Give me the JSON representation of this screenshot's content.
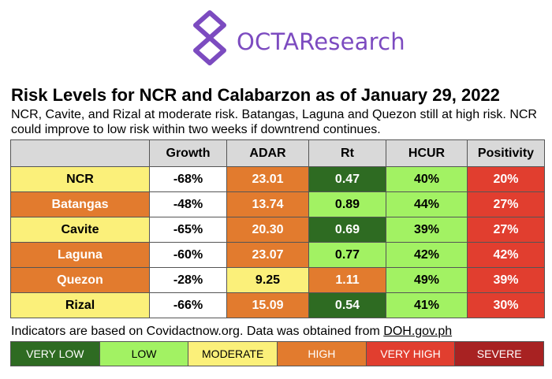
{
  "brand": {
    "name": "OCTAResearch",
    "color": "#7c4bc0"
  },
  "title": "Risk Levels for NCR and Calabarzon as of January 29, 2022",
  "subtitle": "NCR, Cavite, and Rizal at moderate risk. Batangas, Laguna and Quezon still at high risk. NCR could improve to low risk within two weeks if downtrend continues.",
  "table": {
    "headers": [
      "",
      "Growth",
      "ADAR",
      "Rt",
      "HCUR",
      "Positivity"
    ],
    "rows": [
      {
        "region": "NCR",
        "growth": "-68%",
        "adar": "23.01",
        "rt": "0.47",
        "hcur": "40%",
        "positivity": "20%"
      },
      {
        "region": "Batangas",
        "growth": "-48%",
        "adar": "13.74",
        "rt": "0.89",
        "hcur": "44%",
        "positivity": "27%"
      },
      {
        "region": "Cavite",
        "growth": "-65%",
        "adar": "20.30",
        "rt": "0.69",
        "hcur": "39%",
        "positivity": "27%"
      },
      {
        "region": "Laguna",
        "growth": "-60%",
        "adar": "23.07",
        "rt": "0.77",
        "hcur": "42%",
        "positivity": "42%"
      },
      {
        "region": "Quezon",
        "growth": "-28%",
        "adar": "9.25",
        "rt": "1.11",
        "hcur": "49%",
        "positivity": "39%"
      },
      {
        "region": "Rizal",
        "growth": "-66%",
        "adar": "15.09",
        "rt": "0.54",
        "hcur": "41%",
        "positivity": "30%"
      }
    ]
  },
  "footnote": {
    "text": "Indicators are based on Covidactnow.org. Data was obtained from ",
    "link": "DOH.gov.ph"
  },
  "legend": [
    "VERY LOW",
    "LOW",
    "MODERATE",
    "HIGH",
    "VERY HIGH",
    "SEVERE"
  ],
  "colors": {
    "very_low": "#2e6b22",
    "low": "#a2f263",
    "moderate": "#fbf07a",
    "high": "#e27b2e",
    "very_high": "#e13e2f",
    "severe": "#a82222"
  }
}
